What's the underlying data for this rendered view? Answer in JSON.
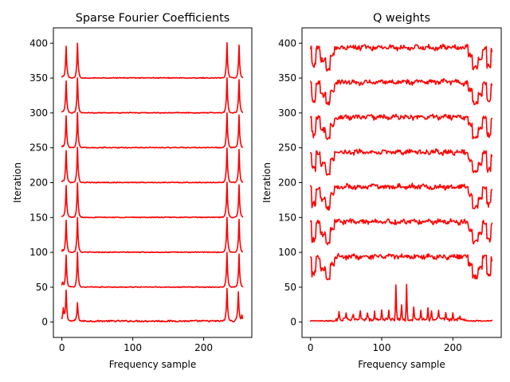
{
  "chart_data": [
    {
      "type": "line",
      "title": "Sparse Fourier Coefficients",
      "xlabel": "Frequency sample",
      "ylabel": "Iteration",
      "xlim": [
        -12,
        268
      ],
      "ylim": [
        -22,
        422
      ],
      "xticks": [
        0,
        100,
        200
      ],
      "yticks": [
        0,
        50,
        100,
        150,
        200,
        250,
        300,
        350,
        400
      ],
      "grid": false,
      "color": "#ff0000",
      "n_samples": 256,
      "series": [
        {
          "offset": 0,
          "base": 1,
          "noise": 1.2,
          "peaks": [
            [
              2,
              18
            ],
            [
              6,
              44
            ],
            [
              22,
              26
            ],
            [
              233,
              46
            ],
            [
              249,
              43
            ],
            [
              254,
              8
            ]
          ]
        },
        {
          "offset": 50,
          "base": 0,
          "noise": 0.6,
          "peaks": [
            [
              1,
              7
            ],
            [
              6,
              46
            ],
            [
              22,
              50
            ],
            [
              233,
              50
            ],
            [
              250,
              48
            ]
          ]
        },
        {
          "offset": 100,
          "base": 0,
          "noise": 0.6,
          "peaks": [
            [
              1,
              3
            ],
            [
              6,
              46
            ],
            [
              22,
              50
            ],
            [
              233,
              50
            ],
            [
              250,
              47
            ]
          ]
        },
        {
          "offset": 150,
          "base": 0,
          "noise": 0.6,
          "peaks": [
            [
              1,
              2
            ],
            [
              6,
              46
            ],
            [
              22,
              50
            ],
            [
              233,
              50
            ],
            [
              250,
              47
            ]
          ]
        },
        {
          "offset": 200,
          "base": 0,
          "noise": 0.6,
          "peaks": [
            [
              1,
              2
            ],
            [
              6,
              46
            ],
            [
              22,
              50
            ],
            [
              233,
              50
            ],
            [
              250,
              47
            ]
          ]
        },
        {
          "offset": 250,
          "base": 0,
          "noise": 0.6,
          "peaks": [
            [
              1,
              2
            ],
            [
              6,
              46
            ],
            [
              22,
              50
            ],
            [
              233,
              50
            ],
            [
              250,
              47
            ]
          ]
        },
        {
          "offset": 300,
          "base": 0,
          "noise": 0.6,
          "peaks": [
            [
              1,
              2
            ],
            [
              6,
              46
            ],
            [
              22,
              50
            ],
            [
              233,
              50
            ],
            [
              250,
              47
            ]
          ]
        },
        {
          "offset": 350,
          "base": 0,
          "noise": 0.6,
          "peaks": [
            [
              1,
              2
            ],
            [
              6,
              46
            ],
            [
              22,
              50
            ],
            [
              233,
              50
            ],
            [
              250,
              47
            ]
          ]
        }
      ]
    },
    {
      "type": "line",
      "title": "Q weights",
      "xlabel": "Frequency sample",
      "ylabel": "Iteration",
      "xlim": [
        -12,
        268
      ],
      "ylim": [
        -22,
        422
      ],
      "xticks": [
        0,
        100,
        200
      ],
      "yticks": [
        0,
        50,
        100,
        150,
        200,
        250,
        300,
        350,
        400
      ],
      "grid": false,
      "color": "#ff0000",
      "n_samples": 256,
      "first_series": {
        "offset": 0,
        "base": 1,
        "spikes": [
          [
            40,
            12
          ],
          [
            50,
            9
          ],
          [
            60,
            8
          ],
          [
            70,
            14
          ],
          [
            80,
            10
          ],
          [
            90,
            11
          ],
          [
            100,
            15
          ],
          [
            110,
            12
          ],
          [
            120,
            50
          ],
          [
            128,
            20
          ],
          [
            135,
            50
          ],
          [
            145,
            16
          ],
          [
            155,
            14
          ],
          [
            165,
            15
          ],
          [
            170,
            13
          ],
          [
            180,
            12
          ],
          [
            190,
            10
          ],
          [
            200,
            8
          ],
          [
            210,
            6
          ]
        ]
      },
      "series": [
        {
          "offset": 50,
          "level": 44
        },
        {
          "offset": 100,
          "level": 44
        },
        {
          "offset": 150,
          "level": 44
        },
        {
          "offset": 200,
          "level": 44
        },
        {
          "offset": 250,
          "level": 44
        },
        {
          "offset": 300,
          "level": 44
        },
        {
          "offset": 350,
          "level": 44
        }
      ]
    }
  ]
}
